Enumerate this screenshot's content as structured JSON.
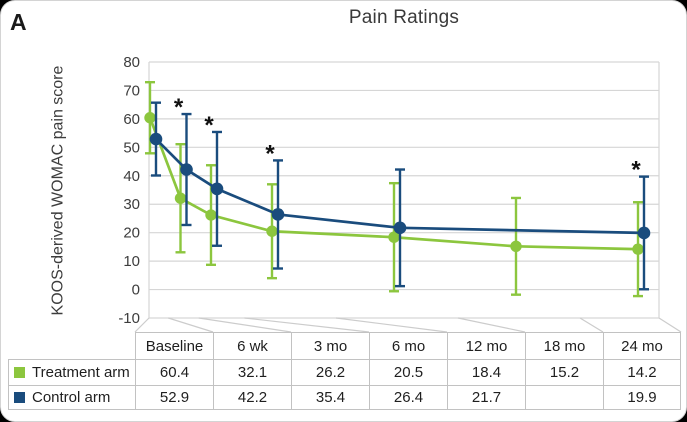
{
  "panel_label": "A",
  "chart_data": {
    "type": "line",
    "title": "Pain Ratings",
    "ylabel": "KOOS-derived WOMAC pain score",
    "ylim": [
      -10,
      80
    ],
    "ytick_step": 10,
    "grid": true,
    "categories": [
      "Baseline",
      "6 wk",
      "3 mo",
      "6 mo",
      "12 mo",
      "18 mo",
      "24 mo"
    ],
    "x_months": [
      0,
      1.5,
      3,
      6,
      12,
      18,
      24
    ],
    "x_axis_range_months": [
      0,
      24
    ],
    "series": [
      {
        "name": "Treatment arm",
        "color": "#8CC63E",
        "values": [
          60.4,
          32.1,
          26.2,
          20.5,
          18.4,
          15.2,
          14.2
        ],
        "error": [
          12.5,
          19,
          17.5,
          16.5,
          19,
          17,
          16.5
        ]
      },
      {
        "name": "Control arm",
        "color": "#1A4C7D",
        "values": [
          52.9,
          42.2,
          35.4,
          26.4,
          21.7,
          null,
          19.9
        ],
        "error": [
          12.8,
          19.5,
          20,
          19,
          20.5,
          null,
          19.8
        ]
      }
    ],
    "significance_marker": "*",
    "significant_indices": [
      1,
      2,
      3,
      6
    ],
    "legend_position": "table-left-column"
  },
  "colors": {
    "treatment": "#8CC63E",
    "control": "#1A4C7D",
    "gridline": "#d6d6d6",
    "connector": "#cccccc",
    "table_border": "#c2c2c2",
    "axis_text": "#3d3d3d",
    "asterisk": "#111111"
  }
}
